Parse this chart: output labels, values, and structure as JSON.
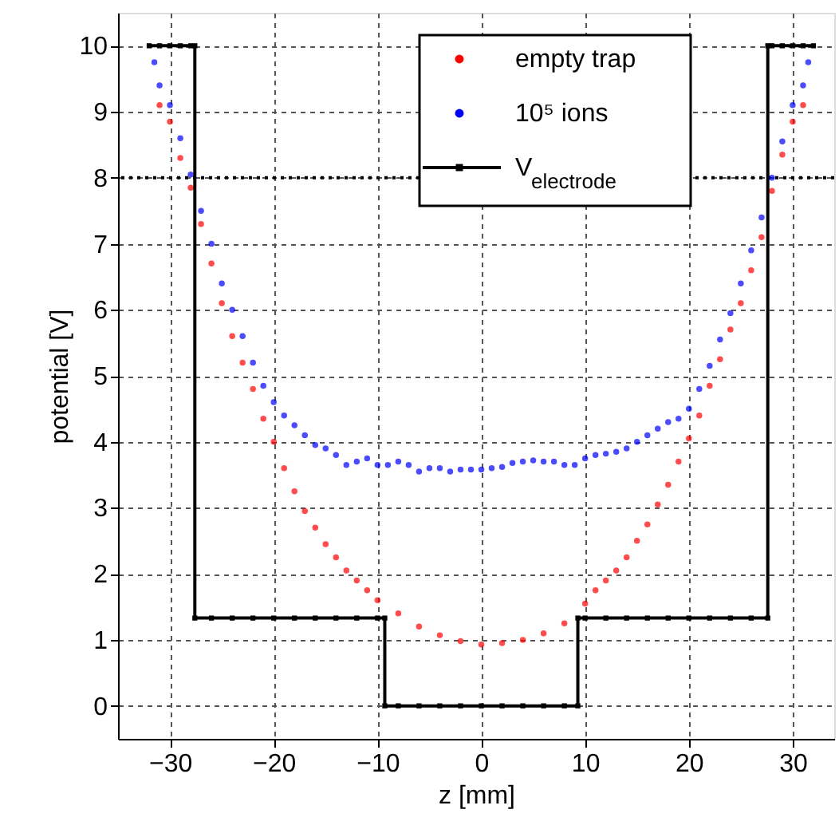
{
  "chart_data": {
    "type": "scatter",
    "xlabel": "z [mm]",
    "ylabel": "potential [V]",
    "xlim": [
      -35,
      34
    ],
    "ylim": [
      -0.5,
      10.5
    ],
    "xticks": [
      -30,
      -20,
      -10,
      0,
      10,
      20,
      30
    ],
    "yticks": [
      0,
      1,
      2,
      3,
      4,
      5,
      6,
      7,
      8,
      9,
      10
    ],
    "grid": true,
    "legend": "top right",
    "ref_lines": [
      {
        "axis": "y",
        "value": 8,
        "color": "#000000",
        "line_style": "dotted"
      }
    ],
    "series": [
      {
        "name": "empty trap",
        "color": "#ff0000",
        "marker": "circle",
        "x": [
          -31,
          -30,
          -29,
          -28,
          -27,
          -26,
          -25,
          -24,
          -23,
          -22,
          -21,
          -20,
          -19,
          -18,
          -17,
          -16,
          -15,
          -14,
          -13,
          -12,
          -11,
          -10,
          -8,
          -6,
          -4,
          -2,
          0,
          2,
          4,
          6,
          8,
          10,
          11,
          12,
          13,
          14,
          15,
          16,
          17,
          18,
          19,
          20,
          21,
          22,
          23,
          24,
          25,
          26,
          27,
          28,
          29,
          30,
          31
        ],
        "values": [
          9.1,
          8.85,
          8.3,
          7.85,
          7.3,
          6.7,
          6.1,
          5.6,
          5.2,
          4.8,
          4.35,
          4.0,
          3.6,
          3.25,
          2.95,
          2.7,
          2.45,
          2.25,
          2.05,
          1.9,
          1.75,
          1.6,
          1.4,
          1.2,
          1.07,
          0.98,
          0.93,
          0.95,
          1.0,
          1.1,
          1.25,
          1.55,
          1.75,
          1.9,
          2.05,
          2.25,
          2.5,
          2.75,
          3.05,
          3.35,
          3.7,
          4.05,
          4.4,
          4.85,
          5.25,
          5.7,
          6.1,
          6.6,
          7.1,
          7.8,
          8.35,
          8.85,
          9.1
        ]
      },
      {
        "name": "10⁵ ions",
        "color": "#0000ff",
        "marker": "circle",
        "x": [
          -31.5,
          -31,
          -30,
          -29,
          -28,
          -27,
          -26,
          -25,
          -24,
          -23,
          -22,
          -21,
          -20,
          -19,
          -18,
          -17,
          -16,
          -15,
          -14,
          -13,
          -12,
          -11,
          -10,
          -9,
          -8,
          -7,
          -6,
          -5,
          -4,
          -3,
          -2,
          -1,
          0,
          1,
          2,
          3,
          4,
          5,
          6,
          7,
          8,
          9,
          10,
          11,
          12,
          13,
          14,
          15,
          16,
          17,
          18,
          19,
          20,
          21,
          22,
          23,
          24,
          25,
          26,
          27,
          28,
          29,
          30,
          31,
          31.5
        ],
        "values": [
          9.75,
          9.4,
          9.1,
          8.6,
          8.05,
          7.5,
          7.0,
          6.4,
          6.0,
          5.6,
          5.2,
          4.85,
          4.6,
          4.4,
          4.25,
          4.1,
          3.95,
          3.9,
          3.8,
          3.65,
          3.7,
          3.75,
          3.65,
          3.65,
          3.7,
          3.65,
          3.55,
          3.6,
          3.6,
          3.55,
          3.58,
          3.58,
          3.58,
          3.6,
          3.62,
          3.68,
          3.7,
          3.72,
          3.7,
          3.7,
          3.65,
          3.65,
          3.75,
          3.8,
          3.82,
          3.85,
          3.9,
          4.0,
          4.1,
          4.2,
          4.3,
          4.35,
          4.5,
          4.8,
          5.15,
          5.55,
          5.95,
          6.4,
          6.9,
          7.4,
          8.0,
          8.55,
          9.1,
          9.4,
          9.75
        ]
      },
      {
        "name": "V$_{electrode}$",
        "type": "line",
        "color": "#000000",
        "marker": "square",
        "line_style": "solid",
        "x": [
          -32,
          -31,
          -30,
          -29,
          -28,
          -27.6,
          -27.6,
          -26,
          -24,
          -22,
          -20,
          -18,
          -16,
          -14,
          -12,
          -10,
          -9.3,
          -9.3,
          -8,
          -6,
          -4,
          -2,
          0,
          2,
          4,
          6,
          8,
          9.3,
          9.3,
          10,
          12,
          14,
          16,
          18,
          20,
          22,
          24,
          26,
          27.6,
          27.6,
          28,
          29,
          30,
          31,
          32
        ],
        "values": [
          10,
          10,
          10,
          10,
          10,
          10,
          1.33,
          1.33,
          1.33,
          1.33,
          1.33,
          1.33,
          1.33,
          1.33,
          1.33,
          1.33,
          1.33,
          0,
          0,
          0,
          0,
          0,
          0,
          0,
          0,
          0,
          0,
          0,
          1.33,
          1.33,
          1.33,
          1.33,
          1.33,
          1.33,
          1.33,
          1.33,
          1.33,
          1.33,
          1.33,
          10,
          10,
          10,
          10,
          10,
          10
        ]
      }
    ]
  }
}
